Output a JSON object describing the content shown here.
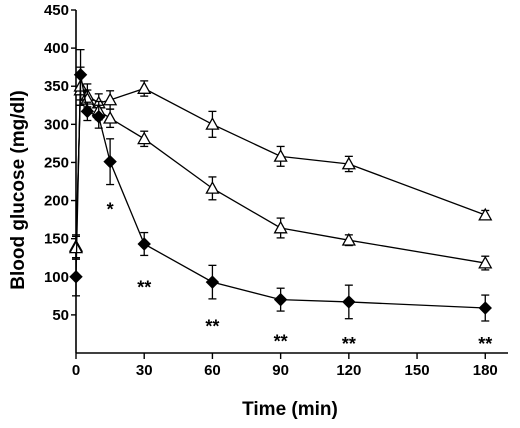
{
  "chart_data": {
    "type": "line",
    "title": "",
    "xlabel": "Time (min)",
    "ylabel": "Blood glucose  (mg/dl)",
    "xlim": [
      0,
      190
    ],
    "ylim": [
      0,
      450
    ],
    "x_ticks": [
      0,
      30,
      60,
      90,
      120,
      150,
      180
    ],
    "y_ticks": [
      50,
      100,
      150,
      200,
      250,
      300,
      350,
      400,
      450
    ],
    "grid": false,
    "legend": "none",
    "series": [
      {
        "marker": "open-triangle",
        "color": "#000000",
        "points": [
          {
            "x": 0,
            "y": 140,
            "err": 15
          },
          {
            "x": 2,
            "y": 345,
            "err": 20
          },
          {
            "x": 5,
            "y": 338,
            "err": 15
          },
          {
            "x": 10,
            "y": 328,
            "err": 12
          },
          {
            "x": 15,
            "y": 332,
            "err": 12
          },
          {
            "x": 30,
            "y": 347,
            "err": 10
          },
          {
            "x": 60,
            "y": 300,
            "err": 17
          },
          {
            "x": 90,
            "y": 258,
            "err": 13
          },
          {
            "x": 120,
            "y": 248,
            "err": 10
          },
          {
            "x": 180,
            "y": 181,
            "err": 6
          }
        ]
      },
      {
        "marker": "open-triangle",
        "color": "#000000",
        "points": [
          {
            "x": 0,
            "y": 138,
            "err": 15
          },
          {
            "x": 2,
            "y": 350,
            "err": 25
          },
          {
            "x": 5,
            "y": 333,
            "err": 12
          },
          {
            "x": 10,
            "y": 318,
            "err": 12
          },
          {
            "x": 15,
            "y": 308,
            "err": 12
          },
          {
            "x": 30,
            "y": 281,
            "err": 10
          },
          {
            "x": 60,
            "y": 216,
            "err": 15
          },
          {
            "x": 90,
            "y": 164,
            "err": 13
          },
          {
            "x": 120,
            "y": 148,
            "err": 7
          },
          {
            "x": 180,
            "y": 118,
            "err": 9
          }
        ]
      },
      {
        "marker": "filled-diamond",
        "color": "#000000",
        "points": [
          {
            "x": 0,
            "y": 100,
            "err": 25
          },
          {
            "x": 2,
            "y": 365,
            "err": 33
          },
          {
            "x": 5,
            "y": 317,
            "err": 12
          },
          {
            "x": 10,
            "y": 310,
            "err": 15
          },
          {
            "x": 15,
            "y": 251,
            "err": 30
          },
          {
            "x": 30,
            "y": 143,
            "err": 15
          },
          {
            "x": 60,
            "y": 93,
            "err": 22
          },
          {
            "x": 90,
            "y": 70,
            "err": 15
          },
          {
            "x": 120,
            "y": 67,
            "err": 22
          },
          {
            "x": 180,
            "y": 59,
            "err": 17
          }
        ]
      }
    ],
    "annotations": [
      {
        "x": 15,
        "y": 188,
        "text": "*"
      },
      {
        "x": 30,
        "y": 86,
        "text": "**"
      },
      {
        "x": 60,
        "y": 35,
        "text": "**"
      },
      {
        "x": 90,
        "y": 15,
        "text": "**"
      },
      {
        "x": 120,
        "y": 12,
        "text": "**"
      },
      {
        "x": 180,
        "y": 12,
        "text": "**"
      }
    ]
  }
}
